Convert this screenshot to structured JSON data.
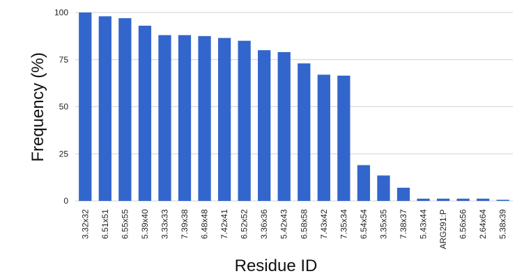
{
  "chart_data": {
    "type": "bar",
    "title": "",
    "xlabel": "Residue ID",
    "ylabel": "Frequency (%)",
    "ylim": [
      0,
      100
    ],
    "yticks": [
      0,
      25,
      50,
      75,
      100
    ],
    "grid": true,
    "bar_color": "#3366cc",
    "categories": [
      "3.32x32",
      "6.51x51",
      "6.55x55",
      "5.39x40",
      "3.33x33",
      "7.39x38",
      "6.48x48",
      "7.42x41",
      "6.52x52",
      "3.36x36",
      "5.42x43",
      "6.58x58",
      "7.43x42",
      "7.35x34",
      "6.54x54",
      "3.35x35",
      "7.38x37",
      "5.43x44",
      "ARG291:P",
      "6.56x56",
      "2.64x64",
      "5.38x39"
    ],
    "values": [
      100,
      98,
      97,
      93,
      88,
      88,
      87.5,
      86.5,
      85,
      80,
      79,
      73,
      67,
      66.5,
      19,
      13.5,
      7,
      1.2,
      1.2,
      1.2,
      1.2,
      0.6
    ]
  }
}
